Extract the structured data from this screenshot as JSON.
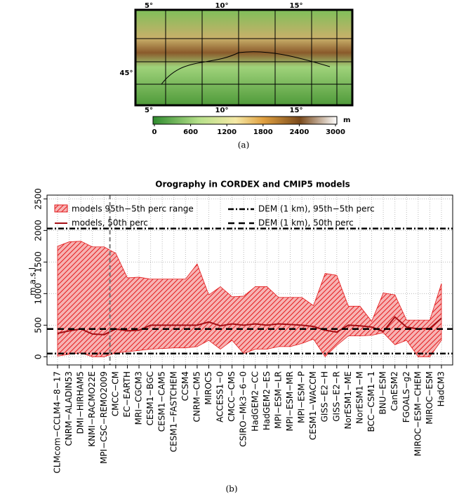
{
  "map": {
    "top_ticks": [
      "5°",
      "10°",
      "15°"
    ],
    "bottom_ticks": [
      "5°",
      "10°",
      "15°"
    ],
    "left_ticks": [
      "45°"
    ],
    "colorbar": {
      "unit": "m",
      "ticks": [
        0,
        600,
        1200,
        1800,
        2400,
        3000
      ]
    },
    "caption": "(a)"
  },
  "chart_data": {
    "type": "band-line",
    "title": "Orography in CORDEX and CMIP5 models",
    "y_label": "m a.s.l.",
    "caption": "(b)",
    "categories": [
      "CLMcom−CCLM4−8−17",
      "CNRM−ALADIN53",
      "DMI−HIRHAM5",
      "KNMI−RACMO22E",
      "MPI−CSC−REMO2009",
      "CMCC−CM",
      "EC−EARTH",
      "MRI−CGCM3",
      "CESM1−BGC",
      "CESM1−CAM5",
      "CESM1−FASTCHEM",
      "CCSM4",
      "CNRM−CM5",
      "MIROC5",
      "ACCESS1−0",
      "CMCC−CMS",
      "CSIRO−Mk3−6−0",
      "HadGEM2−CC",
      "HadGEM2−ES",
      "MPI−ESM−LR",
      "MPI−ESM−MR",
      "MPI−ESM−P",
      "CESM1−WACCM",
      "GISS−E2−H",
      "GISS−E2−R",
      "NorESM1−ME",
      "NorESM1−M",
      "BCC−CSM1−1",
      "BNU−ESM",
      "CanESM2",
      "FGOALS−g2",
      "MIROC−ESM−CHEM",
      "MIROC−ESM",
      "HadCM3"
    ],
    "series": [
      {
        "name": "models  95th−5th perc range",
        "color": "#e31a1c",
        "upper": [
          1750,
          1820,
          1830,
          1740,
          1740,
          1640,
          1250,
          1260,
          1230,
          1230,
          1230,
          1230,
          1470,
          980,
          1110,
          950,
          960,
          1110,
          1110,
          940,
          940,
          940,
          810,
          1320,
          1290,
          800,
          800,
          560,
          1010,
          980,
          580,
          580,
          580,
          1160
        ],
        "lower": [
          10,
          40,
          60,
          0,
          0,
          60,
          80,
          100,
          120,
          130,
          140,
          140,
          160,
          260,
          120,
          260,
          50,
          120,
          120,
          160,
          160,
          210,
          280,
          0,
          180,
          330,
          330,
          340,
          380,
          190,
          260,
          0,
          0,
          260
        ]
      },
      {
        "name": "models, 50th perc",
        "color": "#a50f15",
        "values": [
          370,
          410,
          440,
          360,
          350,
          440,
          410,
          420,
          500,
          500,
          500,
          500,
          500,
          550,
          490,
          520,
          500,
          520,
          500,
          520,
          510,
          500,
          480,
          420,
          390,
          500,
          490,
          470,
          400,
          630,
          470,
          440,
          450,
          610
        ]
      }
    ],
    "reference": [
      {
        "name": "DEM (1 km), 95th−5th perc",
        "values": [
          2030,
          50
        ]
      },
      {
        "name": "DEM (1 km), 50th perc",
        "values": [
          440
        ]
      }
    ],
    "ylim": [
      -130,
      2560
    ],
    "yticks": [
      0,
      500,
      1000,
      1500,
      2000,
      2500
    ],
    "grid": true
  }
}
